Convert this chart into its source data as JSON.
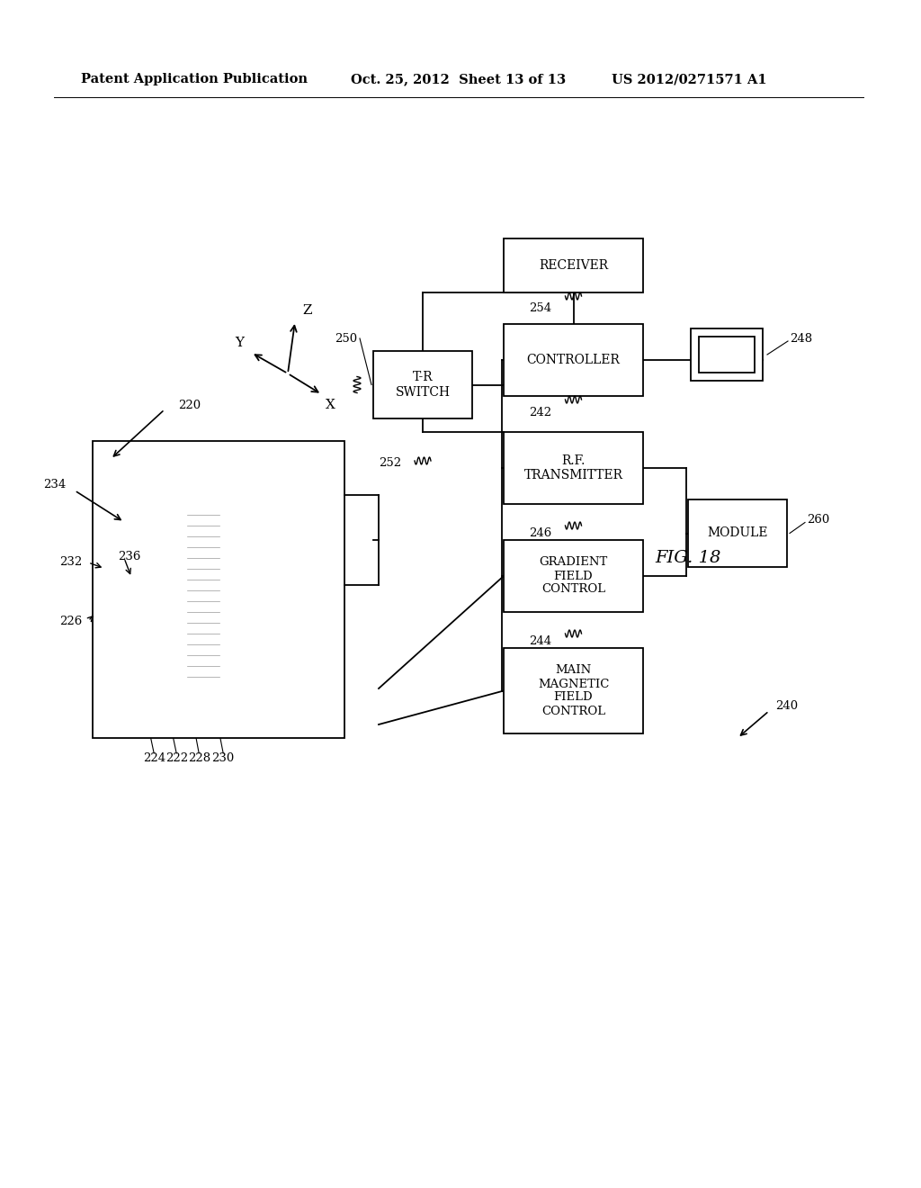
{
  "bg_color": "#ffffff",
  "line_color": "#000000",
  "header_line1": "Patent Application Publication",
  "header_line2": "Oct. 25, 2012  Sheet 13 of 13",
  "header_line3": "US 2012/0271571 A1",
  "fig_label": "FIG. 18",
  "figsize": [
    10.24,
    13.2
  ],
  "dpi": 100
}
